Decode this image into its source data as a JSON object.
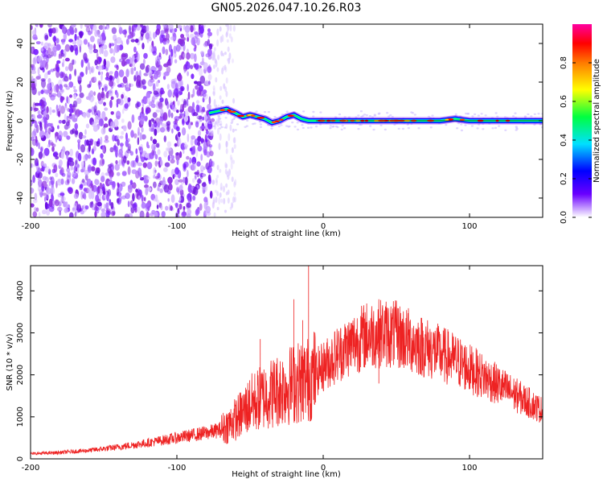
{
  "title": "GN05.2026.047.10.26.R03",
  "chart_data": [
    {
      "type": "heatmap",
      "title": "GN05.2026.047.10.26.R03",
      "xlabel": "Height of straight line (km)",
      "ylabel": "Frequency (Hz)",
      "xlim": [
        -200,
        150
      ],
      "ylim": [
        -50,
        50
      ],
      "xticks": [
        -200,
        -100,
        0,
        100
      ],
      "yticks": [
        -40,
        -20,
        0,
        20,
        40
      ],
      "noise_region_km": [
        -200,
        -75
      ],
      "signal_track": {
        "x": [
          -78,
          -72,
          -66,
          -60,
          -55,
          -50,
          -45,
          -40,
          -35,
          -30,
          -25,
          -20,
          -15,
          -10,
          -5,
          0,
          20,
          40,
          60,
          80,
          90,
          100,
          120,
          150
        ],
        "y": [
          4,
          5,
          6,
          4,
          2,
          3,
          2,
          1,
          -1,
          0,
          2,
          3,
          1,
          0,
          0,
          0,
          0,
          0,
          0,
          0,
          1,
          0,
          0,
          0
        ]
      },
      "colorbar": {
        "label": "Normalized spectral amplitude",
        "range": [
          0.0,
          1.0
        ],
        "ticks": [
          0.0,
          0.2,
          0.4,
          0.6,
          0.8
        ]
      }
    },
    {
      "type": "line",
      "xlabel": "Height of straight line (km)",
      "ylabel": "SNR (10 * v/v)",
      "xlim": [
        -200,
        150
      ],
      "ylim": [
        0,
        4600
      ],
      "xticks": [
        -200,
        -100,
        0,
        100
      ],
      "yticks": [
        0,
        1000,
        2000,
        3000,
        4000
      ],
      "series": [
        {
          "name": "SNR",
          "color": "#ee2222",
          "x": [
            -200,
            -180,
            -160,
            -140,
            -120,
            -100,
            -90,
            -80,
            -75,
            -70,
            -65,
            -60,
            -55,
            -50,
            -40,
            -30,
            -20,
            -10,
            0,
            10,
            20,
            30,
            40,
            50,
            60,
            70,
            80,
            90,
            100,
            110,
            120,
            130,
            140,
            150
          ],
          "values": [
            120,
            150,
            200,
            280,
            380,
            500,
            560,
            620,
            650,
            700,
            800,
            950,
            1100,
            1300,
            1500,
            1650,
            1800,
            1900,
            2200,
            2500,
            2750,
            2950,
            3000,
            2950,
            2800,
            2650,
            2500,
            2350,
            2150,
            1950,
            1750,
            1550,
            1350,
            1150
          ],
          "spikes": [
            {
              "x": -43,
              "y": 2850
            },
            {
              "x": -20,
              "y": 3800
            },
            {
              "x": -10,
              "y": 4600
            },
            {
              "x": -14,
              "y": 3300
            },
            {
              "x": 38,
              "y": 3800
            }
          ]
        }
      ]
    }
  ]
}
